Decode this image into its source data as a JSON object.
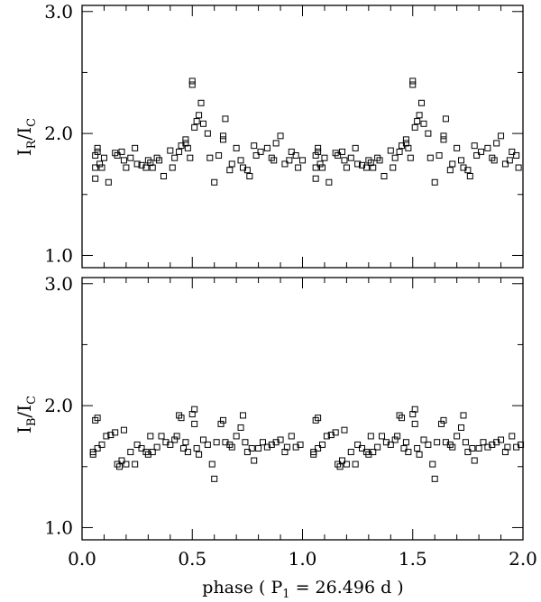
{
  "chart_data": [
    {
      "type": "scatter",
      "panel": "top",
      "ylabel": {
        "main": "I",
        "sub1": "R",
        "slash": "/I",
        "sub2": "C"
      },
      "xlim": [
        0.0,
        2.0
      ],
      "ylim": [
        0.9,
        3.05
      ],
      "yticks": [
        {
          "v": 1.0,
          "label": "1.0"
        },
        {
          "v": 2.0,
          "label": "2.0"
        },
        {
          "v": 3.0,
          "label": "3.0"
        }
      ],
      "marker": "open-square",
      "points": [
        [
          0.06,
          1.72
        ],
        [
          0.06,
          1.82
        ],
        [
          0.07,
          1.85
        ],
        [
          0.07,
          1.88
        ],
        [
          0.06,
          1.63
        ],
        [
          0.08,
          1.75
        ],
        [
          0.09,
          1.72
        ],
        [
          0.1,
          1.8
        ],
        [
          0.12,
          1.6
        ],
        [
          0.15,
          1.84
        ],
        [
          0.16,
          1.82
        ],
        [
          0.18,
          1.85
        ],
        [
          0.19,
          1.78
        ],
        [
          0.2,
          1.72
        ],
        [
          0.22,
          1.8
        ],
        [
          0.24,
          1.88
        ],
        [
          0.25,
          1.75
        ],
        [
          0.27,
          1.74
        ],
        [
          0.29,
          1.72
        ],
        [
          0.3,
          1.78
        ],
        [
          0.31,
          1.76
        ],
        [
          0.32,
          1.72
        ],
        [
          0.34,
          1.8
        ],
        [
          0.35,
          1.78
        ],
        [
          0.37,
          1.65
        ],
        [
          0.4,
          1.86
        ],
        [
          0.41,
          1.72
        ],
        [
          0.42,
          1.8
        ],
        [
          0.44,
          1.85
        ],
        [
          0.45,
          1.9
        ],
        [
          0.47,
          1.92
        ],
        [
          0.47,
          1.95
        ],
        [
          0.48,
          1.88
        ],
        [
          0.49,
          1.8
        ],
        [
          0.5,
          2.4
        ],
        [
          0.5,
          2.43
        ],
        [
          0.51,
          2.05
        ],
        [
          0.52,
          2.1
        ],
        [
          0.53,
          2.15
        ],
        [
          0.54,
          2.25
        ],
        [
          0.55,
          2.08
        ],
        [
          0.57,
          2.0
        ],
        [
          0.58,
          1.8
        ],
        [
          0.6,
          1.6
        ],
        [
          0.62,
          1.82
        ],
        [
          0.64,
          1.95
        ],
        [
          0.64,
          1.98
        ],
        [
          0.65,
          2.12
        ],
        [
          0.67,
          1.7
        ],
        [
          0.68,
          1.75
        ],
        [
          0.7,
          1.88
        ],
        [
          0.72,
          1.78
        ],
        [
          0.73,
          1.72
        ],
        [
          0.75,
          1.7
        ],
        [
          0.76,
          1.65
        ],
        [
          0.78,
          1.9
        ],
        [
          0.79,
          1.82
        ],
        [
          0.81,
          1.85
        ],
        [
          0.84,
          1.88
        ],
        [
          0.86,
          1.8
        ],
        [
          0.87,
          1.78
        ],
        [
          0.88,
          1.92
        ],
        [
          0.9,
          1.98
        ],
        [
          0.92,
          1.75
        ],
        [
          0.94,
          1.78
        ],
        [
          0.95,
          1.85
        ],
        [
          0.97,
          1.82
        ],
        [
          0.98,
          1.72
        ],
        [
          1.0,
          1.78
        ],
        [
          1.06,
          1.72
        ],
        [
          1.06,
          1.82
        ],
        [
          1.07,
          1.85
        ],
        [
          1.07,
          1.88
        ],
        [
          1.06,
          1.63
        ],
        [
          1.08,
          1.75
        ],
        [
          1.09,
          1.72
        ],
        [
          1.1,
          1.8
        ],
        [
          1.12,
          1.6
        ],
        [
          1.15,
          1.84
        ],
        [
          1.16,
          1.82
        ],
        [
          1.18,
          1.85
        ],
        [
          1.19,
          1.78
        ],
        [
          1.2,
          1.72
        ],
        [
          1.22,
          1.8
        ],
        [
          1.24,
          1.88
        ],
        [
          1.25,
          1.75
        ],
        [
          1.27,
          1.74
        ],
        [
          1.29,
          1.72
        ],
        [
          1.3,
          1.78
        ],
        [
          1.31,
          1.76
        ],
        [
          1.32,
          1.72
        ],
        [
          1.34,
          1.8
        ],
        [
          1.35,
          1.78
        ],
        [
          1.37,
          1.65
        ],
        [
          1.4,
          1.86
        ],
        [
          1.41,
          1.72
        ],
        [
          1.42,
          1.8
        ],
        [
          1.44,
          1.85
        ],
        [
          1.45,
          1.9
        ],
        [
          1.47,
          1.92
        ],
        [
          1.47,
          1.95
        ],
        [
          1.48,
          1.88
        ],
        [
          1.49,
          1.8
        ],
        [
          1.5,
          2.4
        ],
        [
          1.5,
          2.43
        ],
        [
          1.51,
          2.05
        ],
        [
          1.52,
          2.1
        ],
        [
          1.53,
          2.15
        ],
        [
          1.54,
          2.25
        ],
        [
          1.55,
          2.08
        ],
        [
          1.57,
          2.0
        ],
        [
          1.58,
          1.8
        ],
        [
          1.6,
          1.6
        ],
        [
          1.62,
          1.82
        ],
        [
          1.64,
          1.95
        ],
        [
          1.64,
          1.98
        ],
        [
          1.65,
          2.12
        ],
        [
          1.67,
          1.7
        ],
        [
          1.68,
          1.75
        ],
        [
          1.7,
          1.88
        ],
        [
          1.72,
          1.78
        ],
        [
          1.73,
          1.72
        ],
        [
          1.75,
          1.7
        ],
        [
          1.76,
          1.65
        ],
        [
          1.78,
          1.9
        ],
        [
          1.79,
          1.82
        ],
        [
          1.81,
          1.85
        ],
        [
          1.84,
          1.88
        ],
        [
          1.86,
          1.8
        ],
        [
          1.87,
          1.78
        ],
        [
          1.88,
          1.92
        ],
        [
          1.9,
          1.98
        ],
        [
          1.92,
          1.75
        ],
        [
          1.94,
          1.78
        ],
        [
          1.95,
          1.85
        ],
        [
          1.97,
          1.82
        ],
        [
          1.98,
          1.72
        ]
      ]
    },
    {
      "type": "scatter",
      "panel": "bottom",
      "ylabel": {
        "main": "I",
        "sub1": "B",
        "slash": "/I",
        "sub2": "C"
      },
      "xlabel": {
        "pre": "phase ( P",
        "sub": "1",
        "post": " = 26.496 d )"
      },
      "xlim": [
        0.0,
        2.0
      ],
      "ylim": [
        0.9,
        3.05
      ],
      "xticks": [
        {
          "v": 0.0,
          "label": "0.0"
        },
        {
          "v": 0.5,
          "label": "0.5"
        },
        {
          "v": 1.0,
          "label": "1.0"
        },
        {
          "v": 1.5,
          "label": "1.5"
        },
        {
          "v": 2.0,
          "label": "2.0"
        }
      ],
      "yticks": [
        {
          "v": 1.0,
          "label": "1.0"
        },
        {
          "v": 2.0,
          "label": "2.0"
        },
        {
          "v": 3.0,
          "label": "3.0"
        }
      ],
      "marker": "open-square",
      "points": [
        [
          0.05,
          1.62
        ],
        [
          0.05,
          1.6
        ],
        [
          0.06,
          1.88
        ],
        [
          0.07,
          1.9
        ],
        [
          0.07,
          1.65
        ],
        [
          0.09,
          1.68
        ],
        [
          0.11,
          1.75
        ],
        [
          0.13,
          1.76
        ],
        [
          0.15,
          1.78
        ],
        [
          0.16,
          1.52
        ],
        [
          0.17,
          1.5
        ],
        [
          0.18,
          1.55
        ],
        [
          0.19,
          1.8
        ],
        [
          0.2,
          1.52
        ],
        [
          0.22,
          1.62
        ],
        [
          0.24,
          1.52
        ],
        [
          0.25,
          1.68
        ],
        [
          0.27,
          1.65
        ],
        [
          0.29,
          1.62
        ],
        [
          0.3,
          1.6
        ],
        [
          0.31,
          1.75
        ],
        [
          0.32,
          1.62
        ],
        [
          0.34,
          1.66
        ],
        [
          0.36,
          1.75
        ],
        [
          0.38,
          1.7
        ],
        [
          0.4,
          1.68
        ],
        [
          0.42,
          1.72
        ],
        [
          0.43,
          1.75
        ],
        [
          0.44,
          1.92
        ],
        [
          0.45,
          1.9
        ],
        [
          0.46,
          1.65
        ],
        [
          0.47,
          1.7
        ],
        [
          0.48,
          1.62
        ],
        [
          0.5,
          1.93
        ],
        [
          0.51,
          1.97
        ],
        [
          0.51,
          1.85
        ],
        [
          0.52,
          1.65
        ],
        [
          0.53,
          1.6
        ],
        [
          0.55,
          1.72
        ],
        [
          0.57,
          1.68
        ],
        [
          0.59,
          1.52
        ],
        [
          0.6,
          1.4
        ],
        [
          0.61,
          1.7
        ],
        [
          0.63,
          1.85
        ],
        [
          0.64,
          1.88
        ],
        [
          0.65,
          1.7
        ],
        [
          0.67,
          1.68
        ],
        [
          0.68,
          1.66
        ],
        [
          0.7,
          1.75
        ],
        [
          0.72,
          1.82
        ],
        [
          0.73,
          1.92
        ],
        [
          0.74,
          1.7
        ],
        [
          0.75,
          1.62
        ],
        [
          0.77,
          1.65
        ],
        [
          0.78,
          1.55
        ],
        [
          0.8,
          1.65
        ],
        [
          0.82,
          1.7
        ],
        [
          0.84,
          1.66
        ],
        [
          0.86,
          1.68
        ],
        [
          0.88,
          1.7
        ],
        [
          0.9,
          1.72
        ],
        [
          0.92,
          1.62
        ],
        [
          0.93,
          1.66
        ],
        [
          0.95,
          1.75
        ],
        [
          0.97,
          1.66
        ],
        [
          0.99,
          1.68
        ],
        [
          1.05,
          1.62
        ],
        [
          1.05,
          1.6
        ],
        [
          1.06,
          1.88
        ],
        [
          1.07,
          1.9
        ],
        [
          1.07,
          1.65
        ],
        [
          1.09,
          1.68
        ],
        [
          1.11,
          1.75
        ],
        [
          1.13,
          1.76
        ],
        [
          1.15,
          1.78
        ],
        [
          1.16,
          1.52
        ],
        [
          1.17,
          1.5
        ],
        [
          1.18,
          1.55
        ],
        [
          1.19,
          1.8
        ],
        [
          1.2,
          1.52
        ],
        [
          1.22,
          1.62
        ],
        [
          1.24,
          1.52
        ],
        [
          1.25,
          1.68
        ],
        [
          1.27,
          1.65
        ],
        [
          1.29,
          1.62
        ],
        [
          1.3,
          1.6
        ],
        [
          1.31,
          1.75
        ],
        [
          1.32,
          1.62
        ],
        [
          1.34,
          1.66
        ],
        [
          1.36,
          1.75
        ],
        [
          1.38,
          1.7
        ],
        [
          1.4,
          1.68
        ],
        [
          1.42,
          1.72
        ],
        [
          1.43,
          1.75
        ],
        [
          1.44,
          1.92
        ],
        [
          1.45,
          1.9
        ],
        [
          1.46,
          1.65
        ],
        [
          1.47,
          1.7
        ],
        [
          1.48,
          1.62
        ],
        [
          1.5,
          1.93
        ],
        [
          1.51,
          1.97
        ],
        [
          1.51,
          1.85
        ],
        [
          1.52,
          1.65
        ],
        [
          1.53,
          1.6
        ],
        [
          1.55,
          1.72
        ],
        [
          1.57,
          1.68
        ],
        [
          1.59,
          1.52
        ],
        [
          1.6,
          1.4
        ],
        [
          1.61,
          1.7
        ],
        [
          1.63,
          1.85
        ],
        [
          1.64,
          1.88
        ],
        [
          1.65,
          1.7
        ],
        [
          1.67,
          1.68
        ],
        [
          1.68,
          1.66
        ],
        [
          1.7,
          1.75
        ],
        [
          1.72,
          1.82
        ],
        [
          1.73,
          1.92
        ],
        [
          1.74,
          1.7
        ],
        [
          1.75,
          1.62
        ],
        [
          1.77,
          1.65
        ],
        [
          1.78,
          1.55
        ],
        [
          1.8,
          1.65
        ],
        [
          1.82,
          1.7
        ],
        [
          1.84,
          1.66
        ],
        [
          1.86,
          1.68
        ],
        [
          1.88,
          1.7
        ],
        [
          1.9,
          1.72
        ],
        [
          1.92,
          1.62
        ],
        [
          1.93,
          1.66
        ],
        [
          1.95,
          1.75
        ],
        [
          1.97,
          1.66
        ],
        [
          1.99,
          1.68
        ]
      ]
    }
  ]
}
